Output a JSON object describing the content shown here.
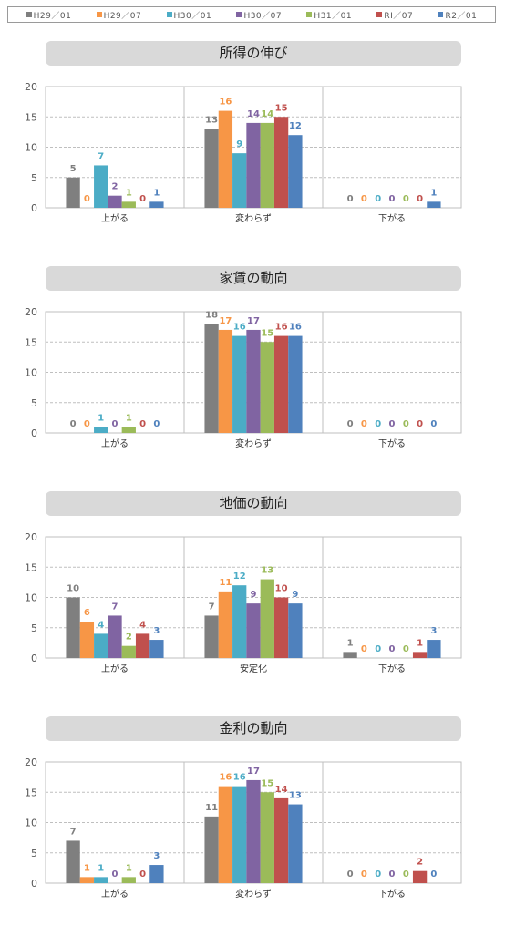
{
  "legend": [
    {
      "name": "H29／01",
      "color": "#7f7f7f"
    },
    {
      "name": "H29／07",
      "color": "#f79646"
    },
    {
      "name": "H30／01",
      "color": "#4bacc6"
    },
    {
      "name": "H30／07",
      "color": "#8064a2"
    },
    {
      "name": "H31／01",
      "color": "#9bbb59"
    },
    {
      "name": "RI／07",
      "color": "#c0504d"
    },
    {
      "name": "R2／01",
      "color": "#4f81bd"
    }
  ],
  "chart_data": [
    {
      "type": "bar",
      "title": "所得の伸び",
      "categories": [
        "上がる",
        "変わらず",
        "下がる"
      ],
      "ylim": [
        0,
        20
      ],
      "yticks": [
        0,
        5,
        10,
        15,
        20
      ],
      "series": [
        {
          "name": "H29／01",
          "values": [
            5,
            13,
            0
          ]
        },
        {
          "name": "H29／07",
          "values": [
            0,
            16,
            0
          ]
        },
        {
          "name": "H30／01",
          "values": [
            7,
            9,
            0
          ]
        },
        {
          "name": "H30／07",
          "values": [
            2,
            14,
            0
          ]
        },
        {
          "name": "H31／01",
          "values": [
            1,
            14,
            0
          ]
        },
        {
          "name": "RI／07",
          "values": [
            0,
            15,
            0
          ]
        },
        {
          "name": "R2／01",
          "values": [
            1,
            12,
            1
          ]
        }
      ]
    },
    {
      "type": "bar",
      "title": "家賃の動向",
      "categories": [
        "上がる",
        "変わらず",
        "下がる"
      ],
      "ylim": [
        0,
        20
      ],
      "yticks": [
        0,
        5,
        10,
        15,
        20
      ],
      "series": [
        {
          "name": "H29／01",
          "values": [
            0,
            18,
            0
          ]
        },
        {
          "name": "H29／07",
          "values": [
            0,
            17,
            0
          ]
        },
        {
          "name": "H30／01",
          "values": [
            1,
            16,
            0
          ]
        },
        {
          "name": "H30／07",
          "values": [
            0,
            17,
            0
          ]
        },
        {
          "name": "H31／01",
          "values": [
            1,
            15,
            0
          ]
        },
        {
          "name": "RI／07",
          "values": [
            0,
            16,
            0
          ]
        },
        {
          "name": "R2／01",
          "values": [
            0,
            16,
            0
          ]
        }
      ]
    },
    {
      "type": "bar",
      "title": "地価の動向",
      "categories": [
        "上がる",
        "安定化",
        "下がる"
      ],
      "ylim": [
        0,
        20
      ],
      "yticks": [
        0,
        5,
        10,
        15,
        20
      ],
      "series": [
        {
          "name": "H29／01",
          "values": [
            10,
            7,
            1
          ]
        },
        {
          "name": "H29／07",
          "values": [
            6,
            11,
            0
          ]
        },
        {
          "name": "H30／01",
          "values": [
            4,
            12,
            0
          ]
        },
        {
          "name": "H30／07",
          "values": [
            7,
            9,
            0
          ]
        },
        {
          "name": "H31／01",
          "values": [
            2,
            13,
            0
          ]
        },
        {
          "name": "RI／07",
          "values": [
            4,
            10,
            1
          ]
        },
        {
          "name": "R2／01",
          "values": [
            3,
            9,
            3
          ]
        }
      ]
    },
    {
      "type": "bar",
      "title": "金利の動向",
      "categories": [
        "上がる",
        "変わらず",
        "下がる"
      ],
      "ylim": [
        0,
        20
      ],
      "yticks": [
        0,
        5,
        10,
        15,
        20
      ],
      "series": [
        {
          "name": "H29／01",
          "values": [
            7,
            11,
            0
          ]
        },
        {
          "name": "H29／07",
          "values": [
            1,
            16,
            0
          ]
        },
        {
          "name": "H30／01",
          "values": [
            1,
            16,
            0
          ]
        },
        {
          "name": "H30／07",
          "values": [
            0,
            17,
            0
          ]
        },
        {
          "name": "H31／01",
          "values": [
            1,
            15,
            0
          ]
        },
        {
          "name": "RI／07",
          "values": [
            0,
            14,
            2
          ]
        },
        {
          "name": "R2／01",
          "values": [
            3,
            13,
            0
          ]
        }
      ]
    }
  ]
}
